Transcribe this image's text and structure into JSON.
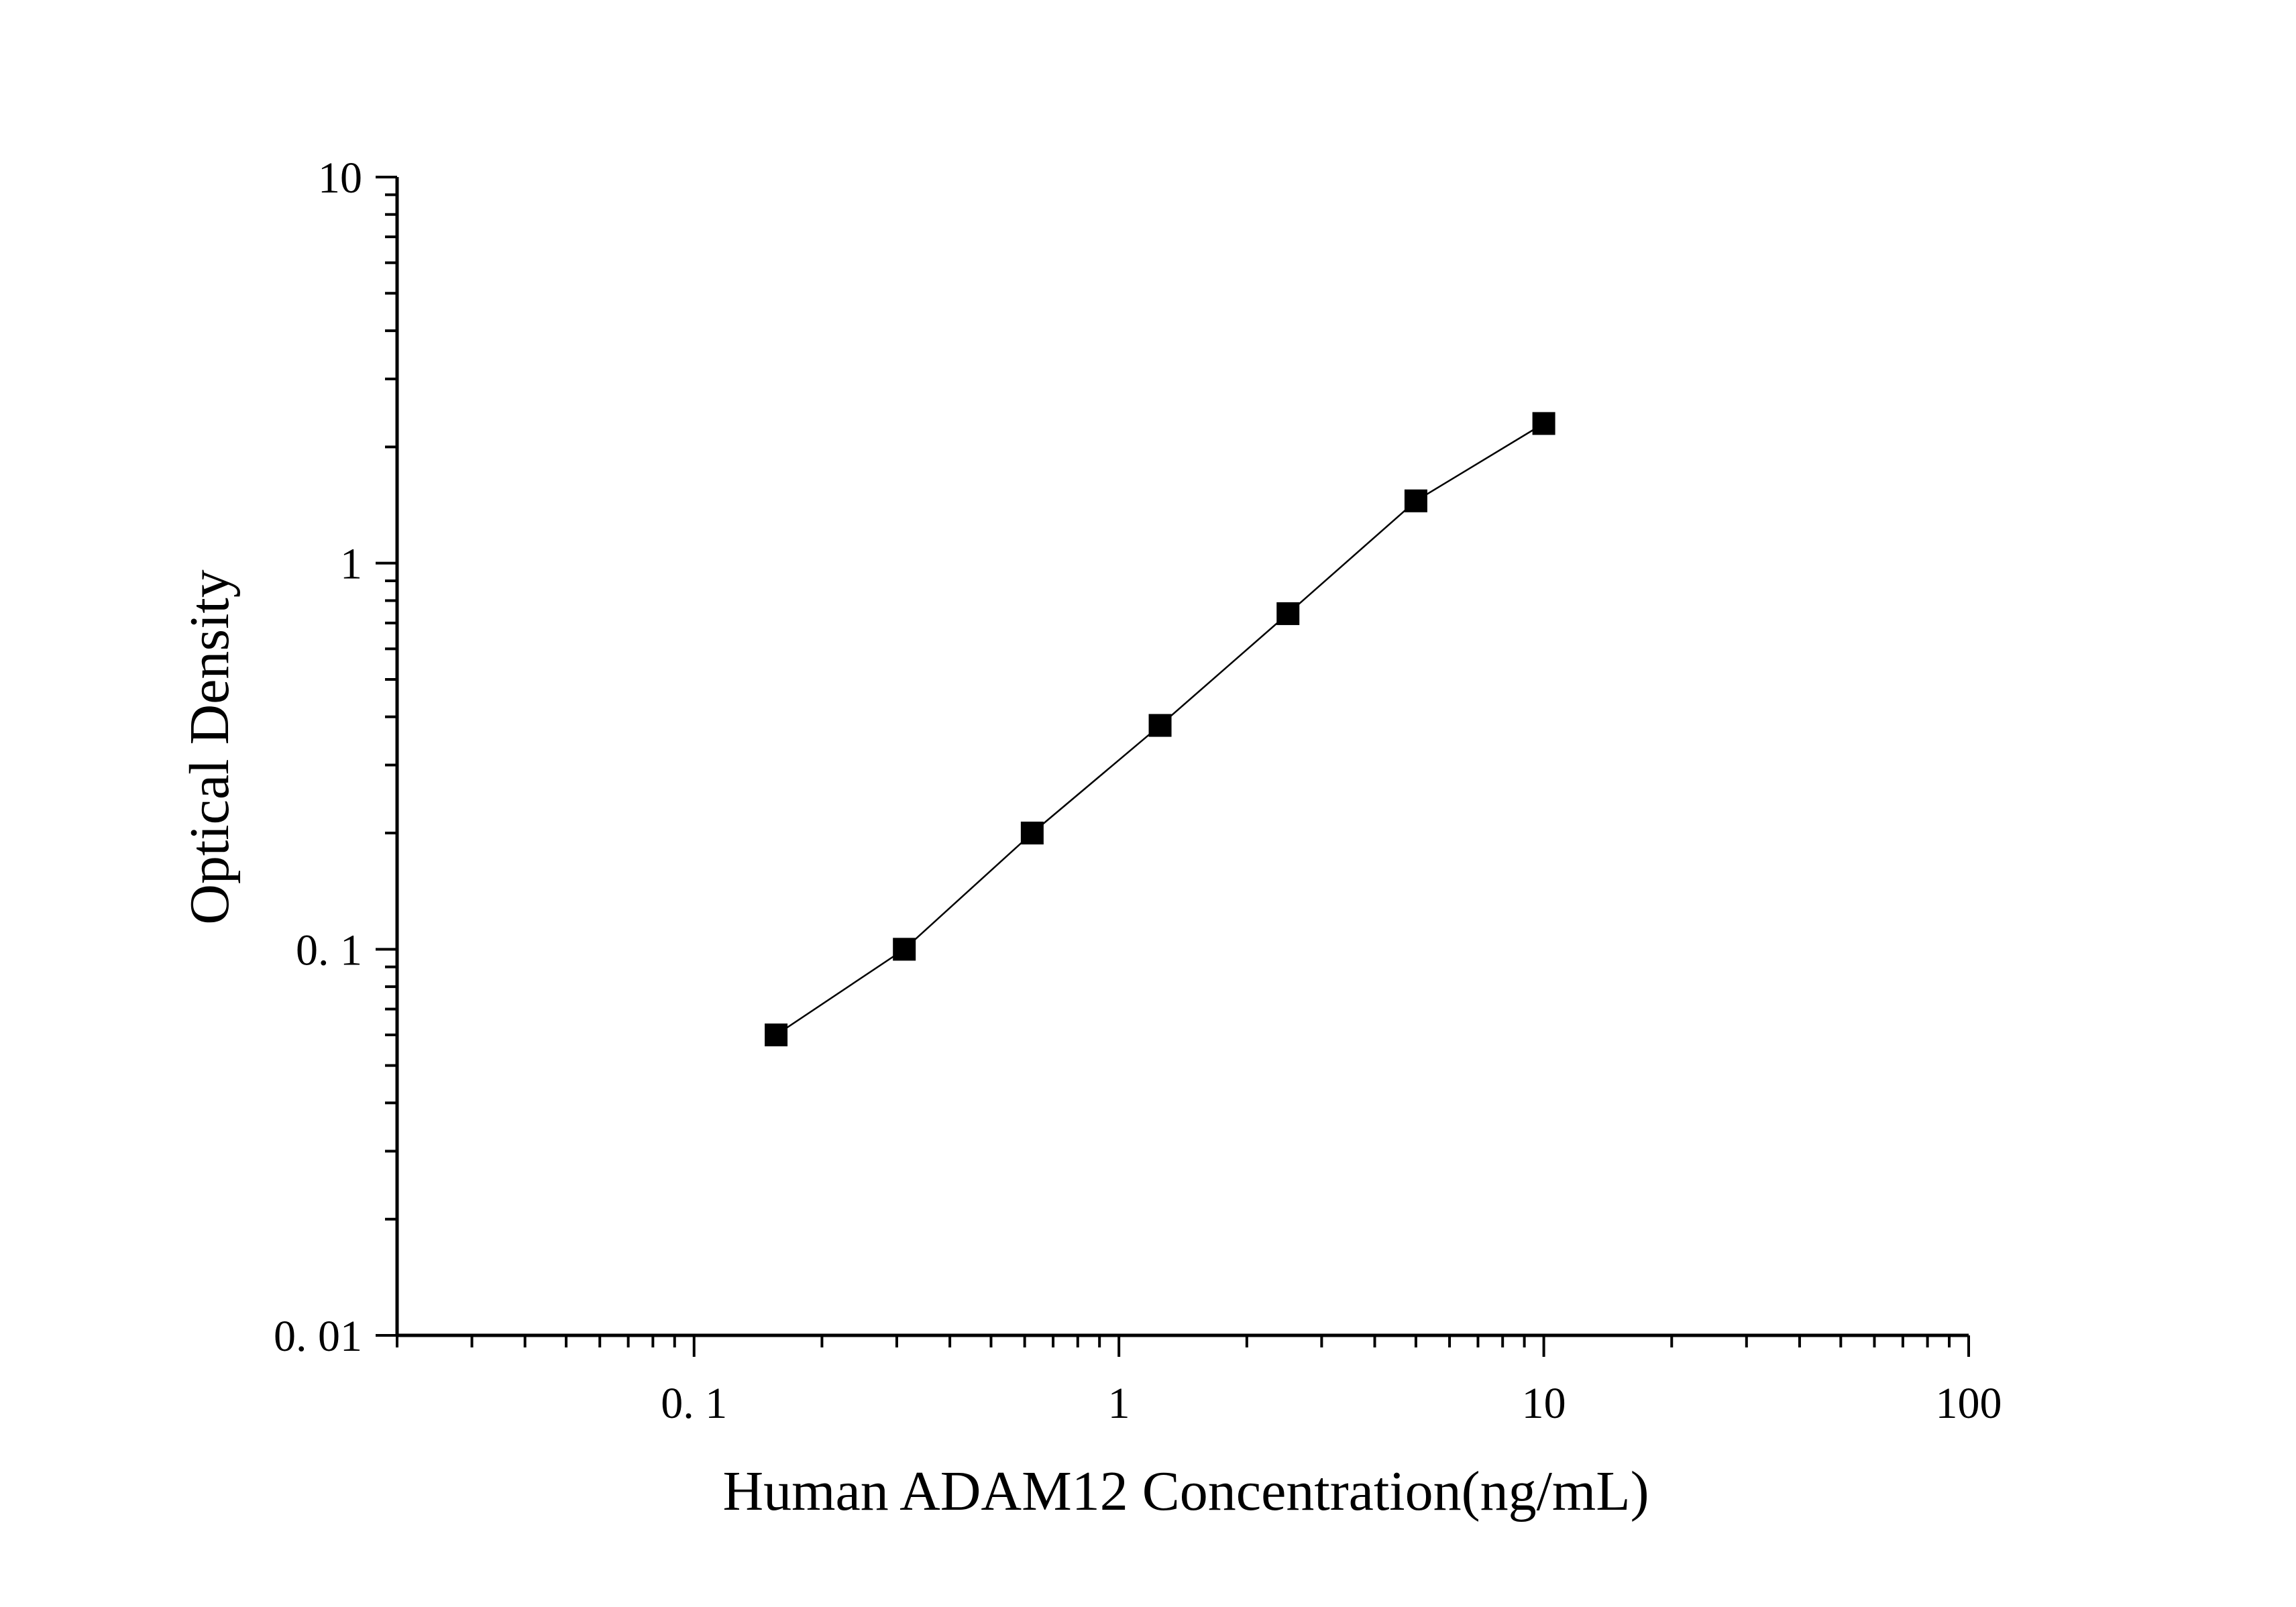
{
  "chart_data": {
    "type": "scatter",
    "title": "",
    "xlabel": "Human ADAM12 Concentration(ng/mL)",
    "ylabel": "Optical Density",
    "x_scale": "log",
    "y_scale": "log",
    "xlim": [
      0.02,
      100
    ],
    "ylim": [
      0.01,
      10
    ],
    "x_ticks": [
      {
        "value": 0.1,
        "label": "0. 1"
      },
      {
        "value": 1,
        "label": "1"
      },
      {
        "value": 10,
        "label": "10"
      },
      {
        "value": 100,
        "label": "100"
      }
    ],
    "y_ticks": [
      {
        "value": 0.01,
        "label": "0. 01"
      },
      {
        "value": 0.1,
        "label": "0. 1"
      },
      {
        "value": 1,
        "label": "1"
      },
      {
        "value": 10,
        "label": "10"
      }
    ],
    "grid": false,
    "legend": "none",
    "series": [
      {
        "marker": "square",
        "connected": true,
        "color": "#000000",
        "x": [
          0.156,
          0.3125,
          0.625,
          1.25,
          2.5,
          5,
          10
        ],
        "y": [
          0.06,
          0.1,
          0.2,
          0.38,
          0.74,
          1.45,
          2.3
        ]
      }
    ]
  }
}
